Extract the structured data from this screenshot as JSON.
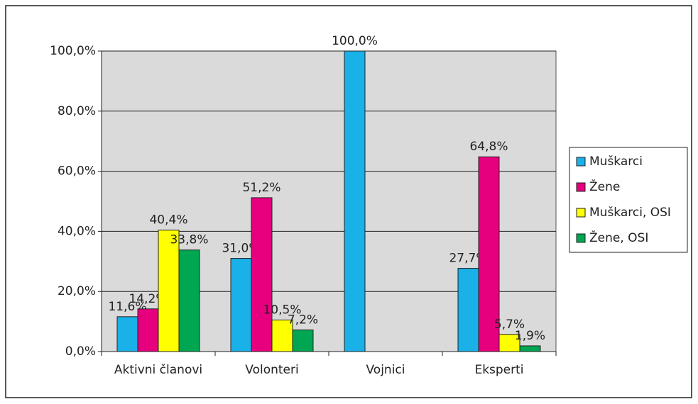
{
  "chart_data": {
    "type": "bar",
    "categories": [
      "Aktivni članovi",
      "Volonteri",
      "Vojnici",
      "Eksperti"
    ],
    "series": [
      {
        "name": "Muškarci",
        "color": "#1ab0e8",
        "values": [
          11.6,
          31.0,
          100.0,
          27.7
        ],
        "value_labels": [
          "11,6%",
          "31,0%",
          "100,0%",
          "27,7%"
        ]
      },
      {
        "name": "Žene",
        "color": "#e6007e",
        "values": [
          14.2,
          51.2,
          null,
          64.8
        ],
        "value_labels": [
          "14,2%",
          "51,2%",
          null,
          "64,8%"
        ]
      },
      {
        "name": "Muškarci, OSI",
        "color": "#ffff00",
        "values": [
          40.4,
          10.5,
          null,
          5.7
        ],
        "value_labels": [
          "40,4%",
          "10,5%",
          null,
          "5,7%"
        ]
      },
      {
        "name": "Žene, OSI",
        "color": "#00a651",
        "values": [
          33.8,
          7.2,
          null,
          1.9
        ],
        "value_labels": [
          "33,8%",
          "7,2%",
          null,
          "1,9%"
        ]
      }
    ],
    "ylim": [
      0,
      100
    ],
    "yticks": [
      {
        "value": 0,
        "label": "0,0%"
      },
      {
        "value": 20,
        "label": "20,0%"
      },
      {
        "value": 40,
        "label": "40,0%"
      },
      {
        "value": 60,
        "label": "60,0%"
      },
      {
        "value": 80,
        "label": "80,0%"
      },
      {
        "value": 100,
        "label": "100,0%"
      }
    ],
    "grid": true,
    "legend": "right"
  }
}
